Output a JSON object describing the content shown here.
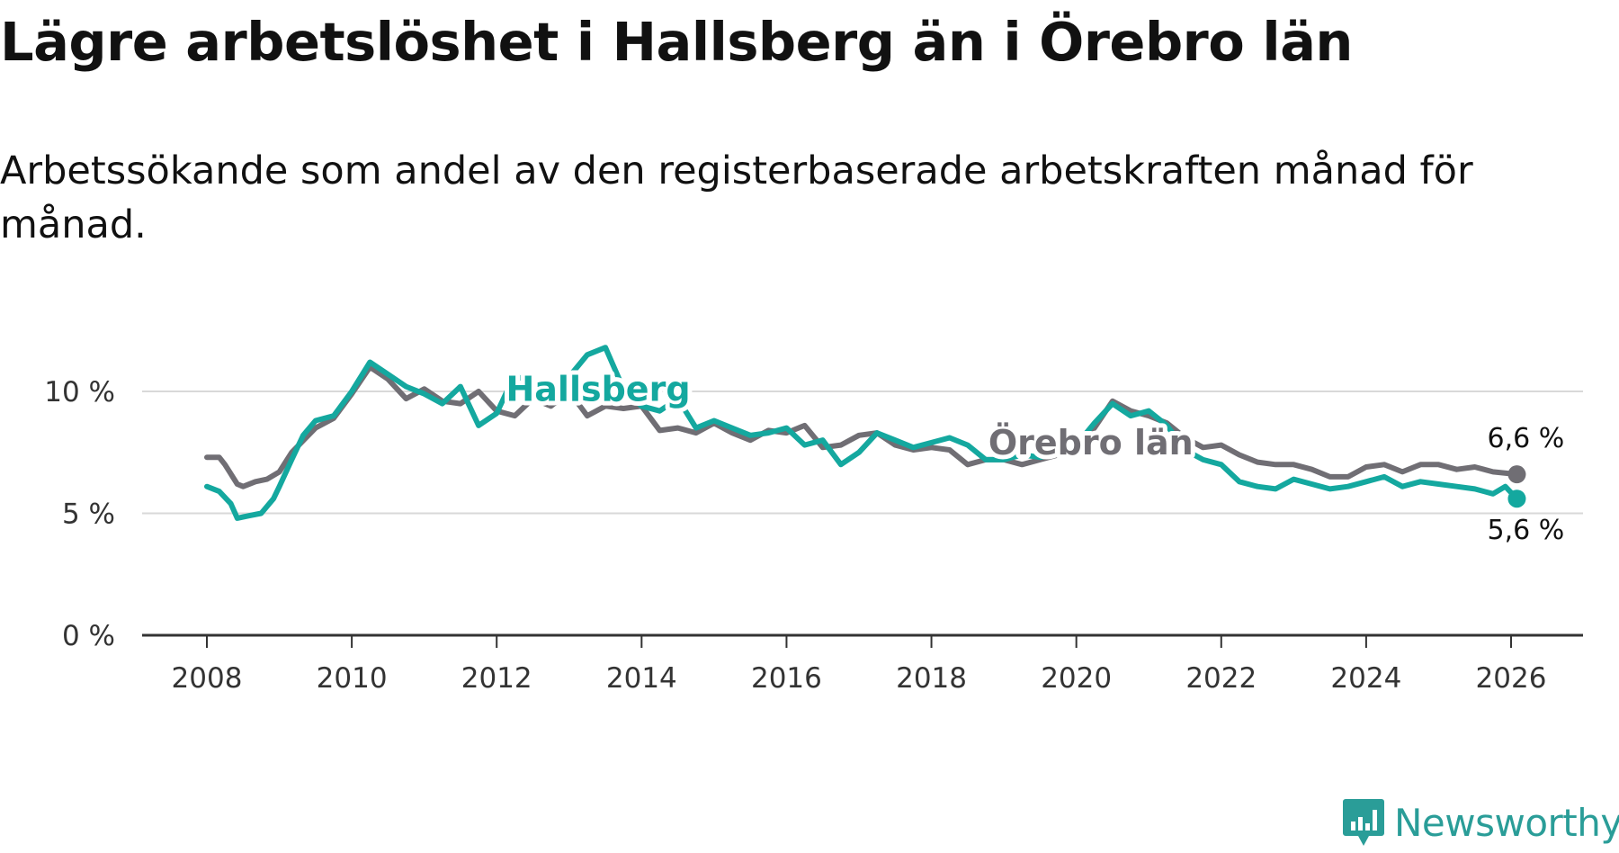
{
  "title": "Lägre arbetslöshet i Hallsberg än i Örebro län",
  "subtitle": "Arbetssökande som andel av den registerbaserade arbetskraften månad för månad.",
  "brand": {
    "name": "Newsworthy",
    "icon": "newsworthy-chart-logo-icon",
    "color": "#2a9d98"
  },
  "colors": {
    "hallsberg": "#14a89f",
    "orebro": "#706e74",
    "grid": "#d9d9d9",
    "axis": "#333333"
  },
  "chart_data": {
    "type": "line",
    "title": "Lägre arbetslöshet i Hallsberg än i Örebro län",
    "xlabel": "",
    "ylabel": "",
    "xlim": [
      2007.7,
      2026.95
    ],
    "ylim": [
      0,
      12
    ],
    "y_ticks": [
      0,
      5,
      10
    ],
    "y_tick_labels": [
      "0 %",
      "5 %",
      "10 %"
    ],
    "x_ticks": [
      2008,
      2010,
      2012,
      2014,
      2016,
      2018,
      2020,
      2022,
      2024,
      2026
    ],
    "x_tick_labels": [
      "2008",
      "2010",
      "2012",
      "2014",
      "2016",
      "2018",
      "2020",
      "2022",
      "2024",
      "2026"
    ],
    "grid": true,
    "series": [
      {
        "name": "Örebro län",
        "label": "Örebro län",
        "end_label": "6,6 %",
        "color": "#706e74",
        "points": [
          [
            2008.0,
            7.3
          ],
          [
            2008.17,
            7.3
          ],
          [
            2008.25,
            7.0
          ],
          [
            2008.42,
            6.2
          ],
          [
            2008.5,
            6.1
          ],
          [
            2008.67,
            6.3
          ],
          [
            2008.83,
            6.4
          ],
          [
            2009.0,
            6.7
          ],
          [
            2009.17,
            7.5
          ],
          [
            2009.5,
            8.5
          ],
          [
            2009.75,
            8.9
          ],
          [
            2010.0,
            9.9
          ],
          [
            2010.25,
            11.0
          ],
          [
            2010.5,
            10.5
          ],
          [
            2010.75,
            9.7
          ],
          [
            2011.0,
            10.1
          ],
          [
            2011.25,
            9.6
          ],
          [
            2011.5,
            9.5
          ],
          [
            2011.75,
            10.0
          ],
          [
            2012.0,
            9.2
          ],
          [
            2012.25,
            9.0
          ],
          [
            2012.5,
            9.7
          ],
          [
            2012.75,
            9.4
          ],
          [
            2013.0,
            10.0
          ],
          [
            2013.25,
            9.0
          ],
          [
            2013.5,
            9.4
          ],
          [
            2013.75,
            9.3
          ],
          [
            2014.0,
            9.4
          ],
          [
            2014.25,
            8.4
          ],
          [
            2014.5,
            8.5
          ],
          [
            2014.75,
            8.3
          ],
          [
            2015.0,
            8.7
          ],
          [
            2015.25,
            8.3
          ],
          [
            2015.5,
            8.0
          ],
          [
            2015.75,
            8.4
          ],
          [
            2016.0,
            8.3
          ],
          [
            2016.25,
            8.6
          ],
          [
            2016.5,
            7.7
          ],
          [
            2016.75,
            7.8
          ],
          [
            2017.0,
            8.2
          ],
          [
            2017.25,
            8.3
          ],
          [
            2017.5,
            7.8
          ],
          [
            2017.75,
            7.6
          ],
          [
            2018.0,
            7.7
          ],
          [
            2018.25,
            7.6
          ],
          [
            2018.5,
            7.0
          ],
          [
            2018.75,
            7.2
          ],
          [
            2019.0,
            7.2
          ],
          [
            2019.25,
            7.0
          ],
          [
            2019.5,
            7.2
          ],
          [
            2019.75,
            7.4
          ],
          [
            2020.0,
            7.7
          ],
          [
            2020.25,
            8.5
          ],
          [
            2020.5,
            9.6
          ],
          [
            2020.75,
            9.2
          ],
          [
            2021.0,
            9.0
          ],
          [
            2021.25,
            8.7
          ],
          [
            2021.5,
            8.1
          ],
          [
            2021.75,
            7.7
          ],
          [
            2022.0,
            7.8
          ],
          [
            2022.25,
            7.4
          ],
          [
            2022.5,
            7.1
          ],
          [
            2022.75,
            7.0
          ],
          [
            2023.0,
            7.0
          ],
          [
            2023.25,
            6.8
          ],
          [
            2023.5,
            6.5
          ],
          [
            2023.75,
            6.5
          ],
          [
            2024.0,
            6.9
          ],
          [
            2024.25,
            7.0
          ],
          [
            2024.5,
            6.7
          ],
          [
            2024.75,
            7.0
          ],
          [
            2025.0,
            7.0
          ],
          [
            2025.25,
            6.8
          ],
          [
            2025.5,
            6.9
          ],
          [
            2025.75,
            6.7
          ],
          [
            2026.08,
            6.6
          ]
        ]
      },
      {
        "name": "Hallsberg",
        "label": "Hallsberg",
        "end_label": "5,6 %",
        "color": "#14a89f",
        "points": [
          [
            2008.0,
            6.1
          ],
          [
            2008.17,
            5.9
          ],
          [
            2008.33,
            5.4
          ],
          [
            2008.42,
            4.8
          ],
          [
            2008.58,
            4.9
          ],
          [
            2008.75,
            5.0
          ],
          [
            2008.92,
            5.6
          ],
          [
            2009.0,
            6.1
          ],
          [
            2009.17,
            7.2
          ],
          [
            2009.33,
            8.2
          ],
          [
            2009.5,
            8.8
          ],
          [
            2009.75,
            9.0
          ],
          [
            2010.0,
            10.0
          ],
          [
            2010.25,
            11.2
          ],
          [
            2010.5,
            10.7
          ],
          [
            2010.75,
            10.2
          ],
          [
            2011.0,
            9.9
          ],
          [
            2011.25,
            9.5
          ],
          [
            2011.5,
            10.2
          ],
          [
            2011.75,
            8.6
          ],
          [
            2012.0,
            9.1
          ],
          [
            2012.25,
            10.7
          ],
          [
            2012.5,
            10.1
          ],
          [
            2012.75,
            9.8
          ],
          [
            2013.0,
            10.6
          ],
          [
            2013.25,
            11.5
          ],
          [
            2013.5,
            11.8
          ],
          [
            2013.75,
            10.1
          ],
          [
            2014.0,
            9.4
          ],
          [
            2014.25,
            9.2
          ],
          [
            2014.5,
            9.7
          ],
          [
            2014.75,
            8.5
          ],
          [
            2015.0,
            8.8
          ],
          [
            2015.25,
            8.5
          ],
          [
            2015.5,
            8.2
          ],
          [
            2015.75,
            8.3
          ],
          [
            2016.0,
            8.5
          ],
          [
            2016.25,
            7.8
          ],
          [
            2016.5,
            8.0
          ],
          [
            2016.75,
            7.0
          ],
          [
            2017.0,
            7.5
          ],
          [
            2017.25,
            8.3
          ],
          [
            2017.5,
            8.0
          ],
          [
            2017.75,
            7.7
          ],
          [
            2018.0,
            7.9
          ],
          [
            2018.25,
            8.1
          ],
          [
            2018.5,
            7.8
          ],
          [
            2018.75,
            7.2
          ],
          [
            2019.0,
            7.2
          ],
          [
            2019.25,
            7.4
          ],
          [
            2019.5,
            7.3
          ],
          [
            2019.75,
            7.5
          ],
          [
            2020.0,
            7.8
          ],
          [
            2020.25,
            8.7
          ],
          [
            2020.5,
            9.5
          ],
          [
            2020.75,
            9.0
          ],
          [
            2021.0,
            9.2
          ],
          [
            2021.25,
            8.6
          ],
          [
            2021.5,
            7.6
          ],
          [
            2021.75,
            7.2
          ],
          [
            2022.0,
            7.0
          ],
          [
            2022.25,
            6.3
          ],
          [
            2022.5,
            6.1
          ],
          [
            2022.75,
            6.0
          ],
          [
            2023.0,
            6.4
          ],
          [
            2023.25,
            6.2
          ],
          [
            2023.5,
            6.0
          ],
          [
            2023.75,
            6.1
          ],
          [
            2024.0,
            6.3
          ],
          [
            2024.25,
            6.5
          ],
          [
            2024.5,
            6.1
          ],
          [
            2024.75,
            6.3
          ],
          [
            2025.0,
            6.2
          ],
          [
            2025.25,
            6.1
          ],
          [
            2025.5,
            6.0
          ],
          [
            2025.75,
            5.8
          ],
          [
            2025.92,
            6.1
          ],
          [
            2026.08,
            5.6
          ]
        ]
      }
    ]
  }
}
